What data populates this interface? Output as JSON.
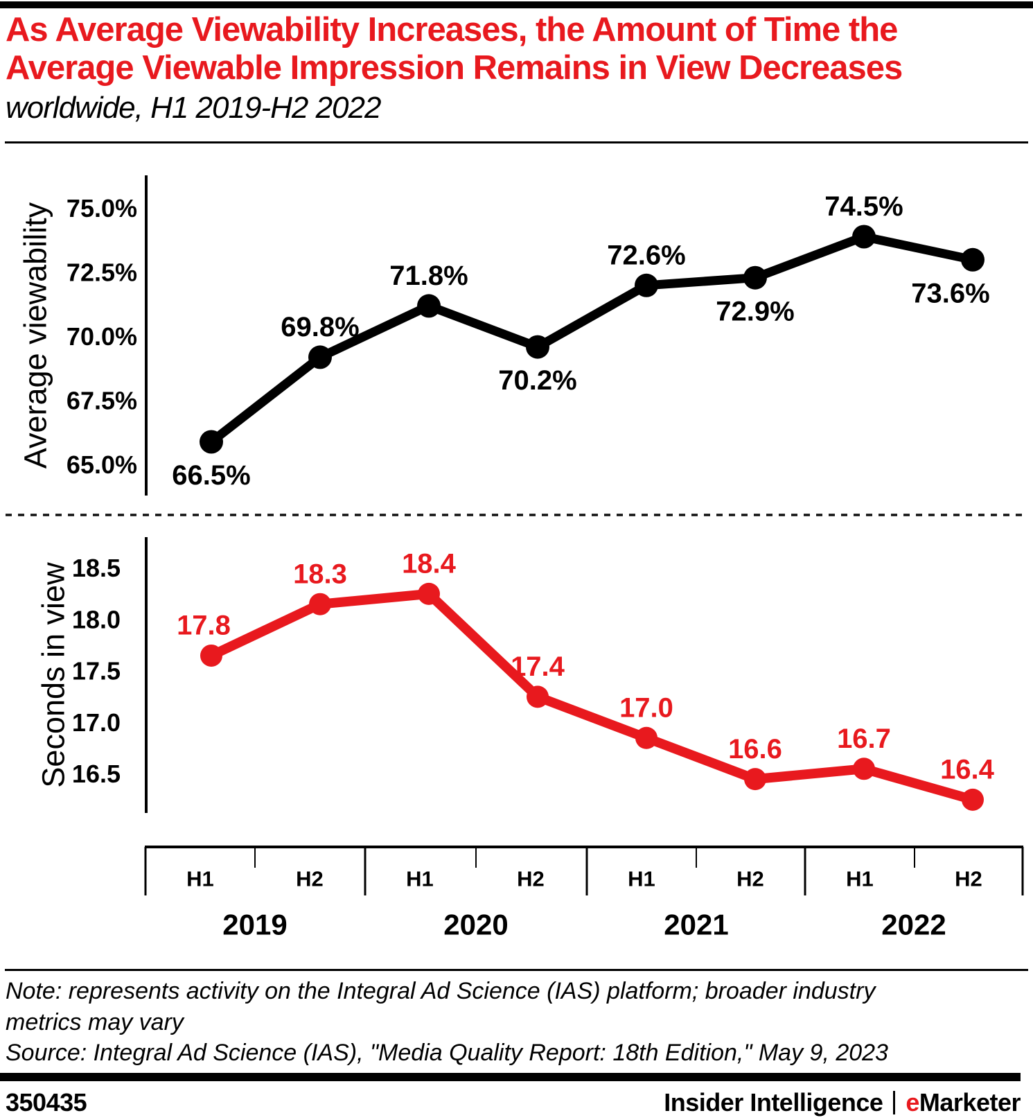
{
  "header": {
    "title": "As Average Viewability Increases, the Amount of Time the Average Viewable Impression Remains in View Decreases",
    "subtitle": "worldwide, H1 2019-H2 2022"
  },
  "chart_data": [
    {
      "type": "line",
      "series_name": "Average viewability",
      "ylabel": "Average viewability",
      "categories": [
        "H1 2019",
        "H2 2019",
        "H1 2020",
        "H2 2020",
        "H1 2021",
        "H2 2021",
        "H1 2022",
        "H2 2022"
      ],
      "values": [
        66.5,
        69.8,
        71.8,
        70.2,
        72.6,
        72.9,
        74.5,
        73.6
      ],
      "point_labels": [
        "66.5%",
        "69.8%",
        "71.8%",
        "70.2%",
        "72.6%",
        "72.9%",
        "74.5%",
        "73.6%"
      ],
      "ytick_values": [
        75.0,
        72.5,
        70.0,
        67.5,
        65.0
      ],
      "ytick_labels": [
        "75.0%",
        "72.5%",
        "70.0%",
        "67.5%",
        "65.0%"
      ],
      "ylim": [
        64.4,
        75.9
      ],
      "color": "#000000",
      "grid": false,
      "label_side": [
        "below",
        "above",
        "above",
        "below",
        "above",
        "below",
        "above",
        "below"
      ],
      "label_dx": [
        0,
        0,
        0,
        0,
        0,
        0,
        0,
        -32
      ]
    },
    {
      "type": "line",
      "series_name": "Seconds in view",
      "ylabel": "Seconds in view",
      "categories": [
        "H1 2019",
        "H2 2019",
        "H1 2020",
        "H2 2020",
        "H1 2021",
        "H2 2021",
        "H1 2022",
        "H2 2022"
      ],
      "values": [
        17.8,
        18.3,
        18.4,
        17.4,
        17.0,
        16.6,
        16.7,
        16.4
      ],
      "point_labels": [
        "17.8",
        "18.3",
        "18.4",
        "17.4",
        "17.0",
        "16.6",
        "16.7",
        "16.4"
      ],
      "ytick_values": [
        18.5,
        18.0,
        17.5,
        17.0,
        16.5
      ],
      "ytick_labels": [
        "18.5",
        "18.0",
        "17.5",
        "17.0",
        "16.5"
      ],
      "ylim": [
        16.2,
        18.73
      ],
      "color": "#E8191E",
      "grid": false,
      "label_side": [
        "above",
        "above",
        "above",
        "above",
        "above",
        "above",
        "above",
        "above"
      ],
      "label_dx": [
        -11,
        0,
        0,
        0,
        0,
        0,
        0,
        -8
      ]
    }
  ],
  "xaxis": {
    "half_labels": [
      "H1",
      "H2",
      "H1",
      "H2",
      "H1",
      "H2",
      "H1",
      "H2"
    ],
    "year_labels": [
      "2019",
      "2020",
      "2021",
      "2022"
    ]
  },
  "footnotes": {
    "note": "Note: represents activity on the Integral Ad Science (IAS) platform; broader industry metrics may vary",
    "source": "Source: Integral Ad Science (IAS), \"Media Quality Report: 18th Edition,\" May 9, 2023"
  },
  "footer": {
    "chart_id": "350435",
    "brand_left": "Insider Intelligence",
    "emarketer_e": "e",
    "emarketer_rest": "Marketer"
  },
  "colors": {
    "accent_red": "#E8191E",
    "series_black": "#000000"
  }
}
